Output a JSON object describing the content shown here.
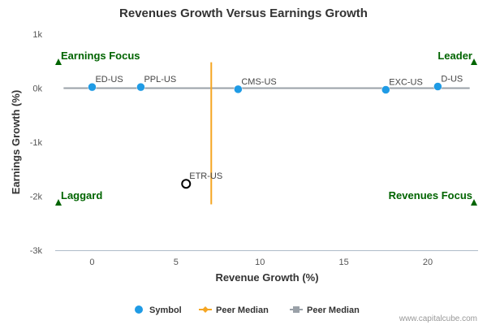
{
  "colors": {
    "point": "#1f9be5",
    "highlight_fill": "#ffffff",
    "highlight_stroke": "#000000",
    "median_v": "#f5a623",
    "median_h": "#9aa1a8",
    "quadrant_text": "#006400",
    "axis": "#aebbc8"
  },
  "chart_data": {
    "type": "scatter",
    "title": "Revenues Growth Versus Earnings Growth",
    "xlabel": "Revenue Growth (%)",
    "ylabel": "Earnings Growth (%)",
    "xlim": [
      -2.2,
      23
    ],
    "ylim": [
      -3000,
      1000
    ],
    "x_ticks": [
      {
        "value": 0,
        "label": "0"
      },
      {
        "value": 5,
        "label": "5"
      },
      {
        "value": 10,
        "label": "10"
      },
      {
        "value": 15,
        "label": "15"
      },
      {
        "value": 20,
        "label": "20"
      }
    ],
    "y_ticks": [
      {
        "value": 1000,
        "label": "1k"
      },
      {
        "value": 0,
        "label": "0k"
      },
      {
        "value": -1000,
        "label": "-1k"
      },
      {
        "value": -2000,
        "label": "-2k"
      },
      {
        "value": -3000,
        "label": "-3k"
      }
    ],
    "points": [
      {
        "label": "ED-US",
        "x": 0.0,
        "y": 20,
        "highlight": false
      },
      {
        "label": "PPL-US",
        "x": 2.9,
        "y": 20,
        "highlight": false
      },
      {
        "label": "CMS-US",
        "x": 8.7,
        "y": -20,
        "highlight": false
      },
      {
        "label": "EXC-US",
        "x": 17.5,
        "y": -30,
        "highlight": false
      },
      {
        "label": "D-US",
        "x": 20.6,
        "y": 30,
        "highlight": false
      },
      {
        "label": "ETR-US",
        "x": 5.6,
        "y": -1770,
        "highlight": true
      }
    ],
    "peer_median_revenue": 7.1,
    "peer_median_earnings": 0,
    "median_v_yrange": [
      -2150,
      480
    ],
    "quadrants": [
      {
        "label": "Earnings Focus",
        "position": "top-left"
      },
      {
        "label": "Leader",
        "position": "top-right"
      },
      {
        "label": "Laggard",
        "position": "bottom-left"
      },
      {
        "label": "Revenues Focus",
        "position": "bottom-right"
      }
    ],
    "legend": [
      {
        "label": "Symbol",
        "type": "symbol"
      },
      {
        "label": "Peer Median",
        "type": "peer-median-revenue"
      },
      {
        "label": "Peer Median",
        "type": "peer-median-earnings"
      }
    ],
    "legend_position": "bottom",
    "credit": "www.capitalcube.com"
  }
}
